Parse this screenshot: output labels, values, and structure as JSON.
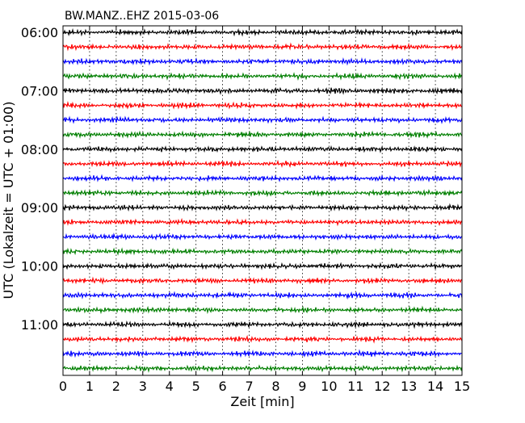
{
  "chart_data": {
    "type": "line",
    "title": "BW.MANZ..EHZ 2015-03-06",
    "xlabel": "Zeit  [min]",
    "ylabel": "UTC (Lokalzeit = UTC + 01:00)",
    "xlim": [
      0,
      15
    ],
    "x_ticks": [
      0,
      1,
      2,
      3,
      4,
      5,
      6,
      7,
      8,
      9,
      10,
      11,
      12,
      13,
      14,
      15
    ],
    "y_tick_labels": [
      "06:00",
      "07:00",
      "08:00",
      "09:00",
      "10:00",
      "11:00"
    ],
    "trace_count": 24,
    "trace_interval_minutes": 15,
    "start_time": "06:00",
    "trace_colors": [
      "#000000",
      "#ff0000",
      "#0000ff",
      "#007f00"
    ],
    "grid": "vertical dotted at each minute"
  }
}
